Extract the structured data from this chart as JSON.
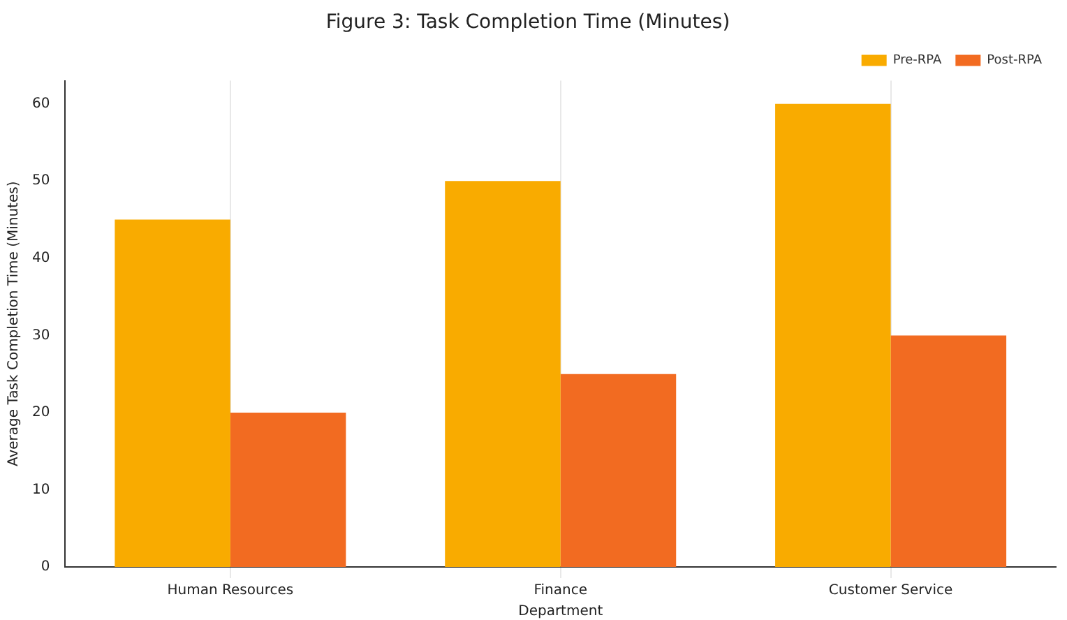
{
  "chart_data": {
    "type": "bar",
    "title": "Figure 3: Task Completion Time (Minutes)",
    "xlabel": "Department",
    "ylabel": "Average Task Completion Time (Minutes)",
    "categories": [
      "Human Resources",
      "Finance",
      "Customer Service"
    ],
    "series": [
      {
        "name": "Pre-RPA",
        "color": "#f9ab00",
        "values": [
          45,
          50,
          60
        ]
      },
      {
        "name": "Post-RPA",
        "color": "#f26b21",
        "values": [
          20,
          25,
          30
        ]
      }
    ],
    "ylim": [
      0,
      63
    ],
    "yticks": [
      0,
      10,
      20,
      30,
      40,
      50,
      60
    ],
    "grid": "x",
    "legend": "top right"
  }
}
